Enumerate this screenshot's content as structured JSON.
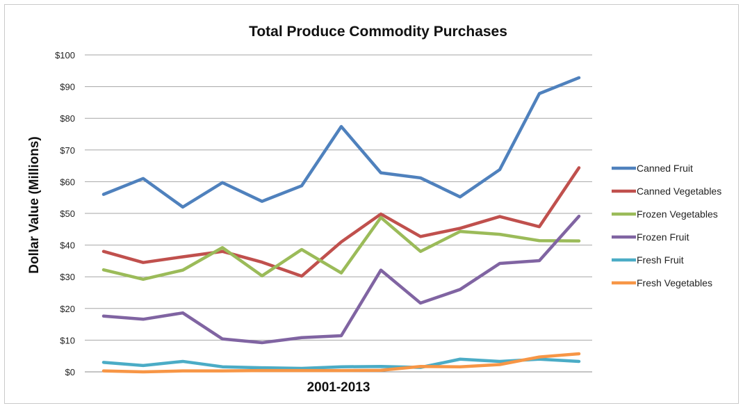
{
  "chart_data": {
    "type": "line",
    "title": "Total Produce Commodity Purchases",
    "xlabel": "2001-2013",
    "ylabel": "Dollar Value (Millions)",
    "ylim": [
      0,
      100
    ],
    "y_ticks": [
      "$0",
      "$10",
      "$20",
      "$30",
      "$40",
      "$50",
      "$60",
      "$70",
      "$80",
      "$90",
      "$100"
    ],
    "grid": true,
    "legend_position": "right",
    "x": [
      2001,
      2002,
      2003,
      2004,
      2005,
      2006,
      2007,
      2008,
      2009,
      2010,
      2011,
      2012,
      2013
    ],
    "series": [
      {
        "name": "Canned Fruit",
        "color": "#4f81bd",
        "values": [
          56,
          61,
          52,
          59.7,
          53.8,
          58.7,
          77.4,
          62.8,
          61.2,
          55.2,
          63.8,
          87.8,
          92.8
        ]
      },
      {
        "name": "Canned Vegetables",
        "color": "#c0504d",
        "values": [
          38,
          34.5,
          36.3,
          38,
          34.6,
          30.2,
          41,
          49.8,
          42.7,
          45.3,
          49,
          45.8,
          64.4
        ]
      },
      {
        "name": "Frozen Vegetables",
        "color": "#9bbb59",
        "values": [
          32.2,
          29.2,
          32.1,
          39.2,
          30.3,
          38.6,
          31.2,
          48.7,
          38,
          44.3,
          43.4,
          41.4,
          41.3
        ]
      },
      {
        "name": "Frozen Fruit",
        "color": "#8064a2",
        "values": [
          17.6,
          16.6,
          18.6,
          10.4,
          9.2,
          10.8,
          11.4,
          32.1,
          21.7,
          26,
          34.2,
          35.1,
          49.1
        ]
      },
      {
        "name": "Fresh Fruit",
        "color": "#4bacc6",
        "values": [
          3,
          2,
          3.3,
          1.6,
          1.3,
          1.1,
          1.6,
          1.7,
          1.4,
          4,
          3.3,
          4,
          3.3
        ]
      },
      {
        "name": "Fresh Vegetables",
        "color": "#f79646",
        "values": [
          0.3,
          0,
          0.3,
          0.3,
          0.4,
          0.4,
          0.4,
          0.5,
          1.7,
          1.6,
          2.3,
          4.7,
          5.7
        ]
      }
    ]
  }
}
